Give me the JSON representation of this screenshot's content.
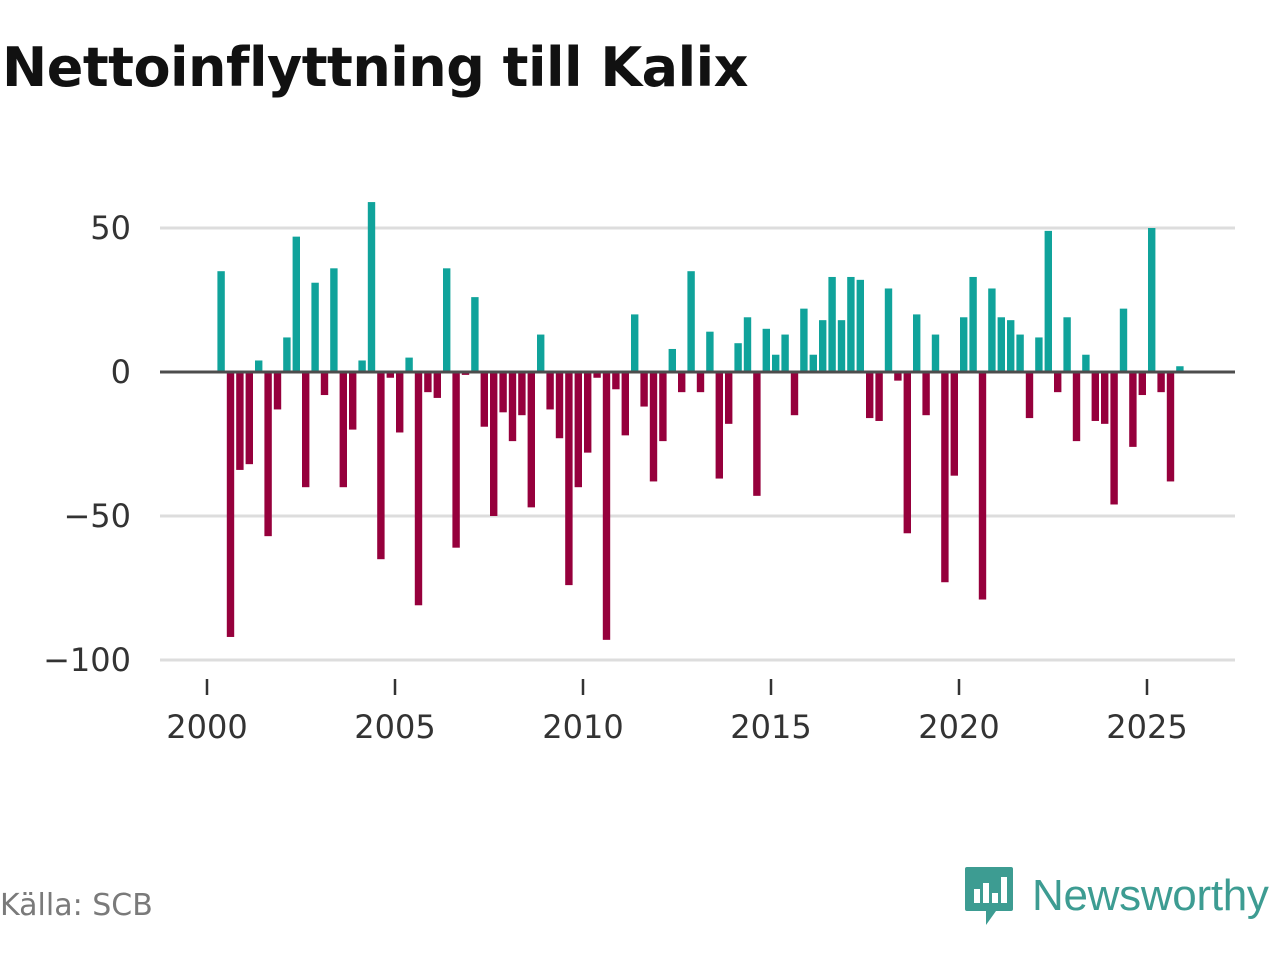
{
  "title": "Nettoinflyttning till Kalix",
  "source": "Källa: SCB",
  "brand": {
    "name": "Newsworthy",
    "icon": "newsworthy-logo-icon"
  },
  "colors": {
    "positive": "#10a39b",
    "negative": "#96003c",
    "grid": "#dddddd",
    "zero_line": "#4d4d4d"
  },
  "chart_data": {
    "type": "bar",
    "title": "Nettoinflyttning till Kalix",
    "xlabel": "",
    "ylabel": "",
    "ylim": [
      -100,
      60
    ],
    "xlim": [
      1998.8,
      2027.2
    ],
    "yticks": [
      50,
      0,
      -50,
      -100
    ],
    "ytick_labels": [
      "50",
      "0",
      "−50",
      "−100"
    ],
    "xticks": [
      2000,
      2005,
      2010,
      2015,
      2020,
      2025
    ],
    "xtick_labels": [
      "2000",
      "2005",
      "2010",
      "2015",
      "2020",
      "2025"
    ],
    "period": "quarterly",
    "start": 2000.375,
    "step": 0.25,
    "values": [
      35,
      -92,
      -34,
      -32,
      4,
      -57,
      -13,
      12,
      47,
      -40,
      31,
      -8,
      36,
      -40,
      -20,
      4,
      59,
      -65,
      -2,
      -21,
      5,
      -81,
      -7,
      -9,
      36,
      -61,
      -1,
      26,
      -19,
      -50,
      -14,
      -24,
      -15,
      -47,
      13,
      -13,
      -23,
      -74,
      -40,
      -28,
      -2,
      -93,
      -6,
      -22,
      20,
      -12,
      -38,
      -24,
      8,
      -7,
      35,
      -7,
      14,
      -37,
      -18,
      10,
      19,
      -43,
      15,
      6,
      13,
      -15,
      22,
      6,
      18,
      33,
      18,
      33,
      32,
      -16,
      -17,
      29,
      -3,
      -56,
      20,
      -15,
      13,
      -73,
      -36,
      19,
      33,
      -79,
      29,
      19,
      18,
      13,
      -16,
      12,
      49,
      -7,
      19,
      -24,
      6,
      -17,
      -18,
      -46,
      22,
      -26,
      -8,
      50,
      -7,
      -38,
      2
    ]
  }
}
